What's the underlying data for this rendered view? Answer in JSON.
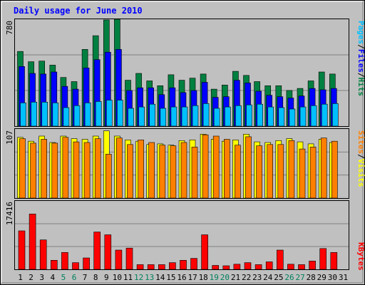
{
  "chart_data": [
    {
      "type": "bar",
      "title": "Daily usage for June 2010",
      "categories": [
        "1",
        "2",
        "3",
        "4",
        "5",
        "6",
        "7",
        "8",
        "9",
        "10",
        "11",
        "12",
        "13",
        "14",
        "15",
        "16",
        "17",
        "18",
        "19",
        "20",
        "21",
        "22",
        "23",
        "24",
        "25",
        "26",
        "27",
        "28",
        "29",
        "30",
        "31"
      ],
      "weekend_days": [
        "5",
        "6",
        "12",
        "13",
        "19",
        "20",
        "26",
        "27"
      ],
      "ymax_label": "780",
      "ylim": [
        0,
        780
      ],
      "grid": true,
      "series": [
        {
          "name": "Hits",
          "color": "#008040",
          "values": [
            545,
            470,
            475,
            445,
            355,
            325,
            560,
            660,
            775,
            780,
            335,
            385,
            330,
            295,
            375,
            335,
            350,
            380,
            270,
            300,
            400,
            370,
            325,
            295,
            295,
            260,
            275,
            330,
            395,
            380,
            0
          ]
        },
        {
          "name": "Files",
          "color": "#0000FF",
          "values": [
            435,
            385,
            380,
            395,
            290,
            270,
            425,
            485,
            540,
            560,
            260,
            280,
            280,
            230,
            280,
            245,
            260,
            320,
            210,
            215,
            335,
            315,
            255,
            225,
            215,
            205,
            220,
            275,
            265,
            275,
            0
          ]
        },
        {
          "name": "Pages",
          "color": "#00C0FF",
          "values": [
            170,
            175,
            175,
            170,
            135,
            150,
            170,
            180,
            190,
            190,
            130,
            140,
            160,
            130,
            140,
            140,
            150,
            165,
            130,
            140,
            150,
            155,
            160,
            140,
            135,
            125,
            140,
            150,
            160,
            165,
            0
          ]
        }
      ],
      "legend": {
        "hits": "Hits",
        "files": "Files",
        "pages": "Pages",
        "sep": "/"
      }
    },
    {
      "type": "bar",
      "categories": [
        "1",
        "2",
        "3",
        "4",
        "5",
        "6",
        "7",
        "8",
        "9",
        "10",
        "11",
        "12",
        "13",
        "14",
        "15",
        "16",
        "17",
        "18",
        "19",
        "20",
        "21",
        "22",
        "23",
        "24",
        "25",
        "26",
        "27",
        "28",
        "29",
        "30",
        "31"
      ],
      "ymax_label": "107",
      "ylim": [
        0,
        107
      ],
      "grid": true,
      "series": [
        {
          "name": "Visits",
          "color": "#FFFF00",
          "values": [
            94,
            88,
            96,
            86,
            96,
            92,
            91,
            96,
            104,
            96,
            90,
            88,
            83,
            84,
            82,
            89,
            90,
            99,
            91,
            88,
            90,
            99,
            87,
            86,
            89,
            92,
            87,
            84,
            91,
            86,
            0
          ]
        },
        {
          "name": "Sites",
          "color": "#FF8000",
          "values": [
            92,
            85,
            91,
            85,
            94,
            87,
            86,
            92,
            68,
            93,
            83,
            90,
            86,
            82,
            81,
            86,
            79,
            98,
            96,
            91,
            82,
            95,
            81,
            83,
            83,
            89,
            76,
            79,
            93,
            88,
            0
          ]
        }
      ],
      "legend": {
        "visits": "Visits",
        "sites": "Sites",
        "sep": "/"
      }
    },
    {
      "type": "bar",
      "categories": [
        "1",
        "2",
        "3",
        "4",
        "5",
        "6",
        "7",
        "8",
        "9",
        "10",
        "11",
        "12",
        "13",
        "14",
        "15",
        "16",
        "17",
        "18",
        "19",
        "20",
        "21",
        "22",
        "23",
        "24",
        "25",
        "26",
        "27",
        "28",
        "29",
        "30",
        "31"
      ],
      "ymax_label": "17416",
      "ylim": [
        0,
        17416
      ],
      "grid": true,
      "series": [
        {
          "name": "KBytes",
          "color": "#FF0000",
          "values": [
            9800,
            14100,
            7500,
            2300,
            4300,
            1700,
            2900,
            9500,
            8800,
            4900,
            5400,
            1200,
            1200,
            1200,
            1700,
            2300,
            2800,
            8800,
            1000,
            900,
            1300,
            1700,
            1200,
            1900,
            4900,
            1300,
            1200,
            2100,
            5300,
            4300,
            0
          ]
        }
      ],
      "legend": {
        "kbytes": "KBytes"
      }
    }
  ],
  "colors": {
    "page_bg": "#FFFFFF",
    "frame_bg": "#C0C0C0",
    "plot_bg": "#C0C0C0",
    "grid": "#808080",
    "title": "#0000FF",
    "axis_text": "#000000",
    "weekend_text": "#00805C"
  }
}
